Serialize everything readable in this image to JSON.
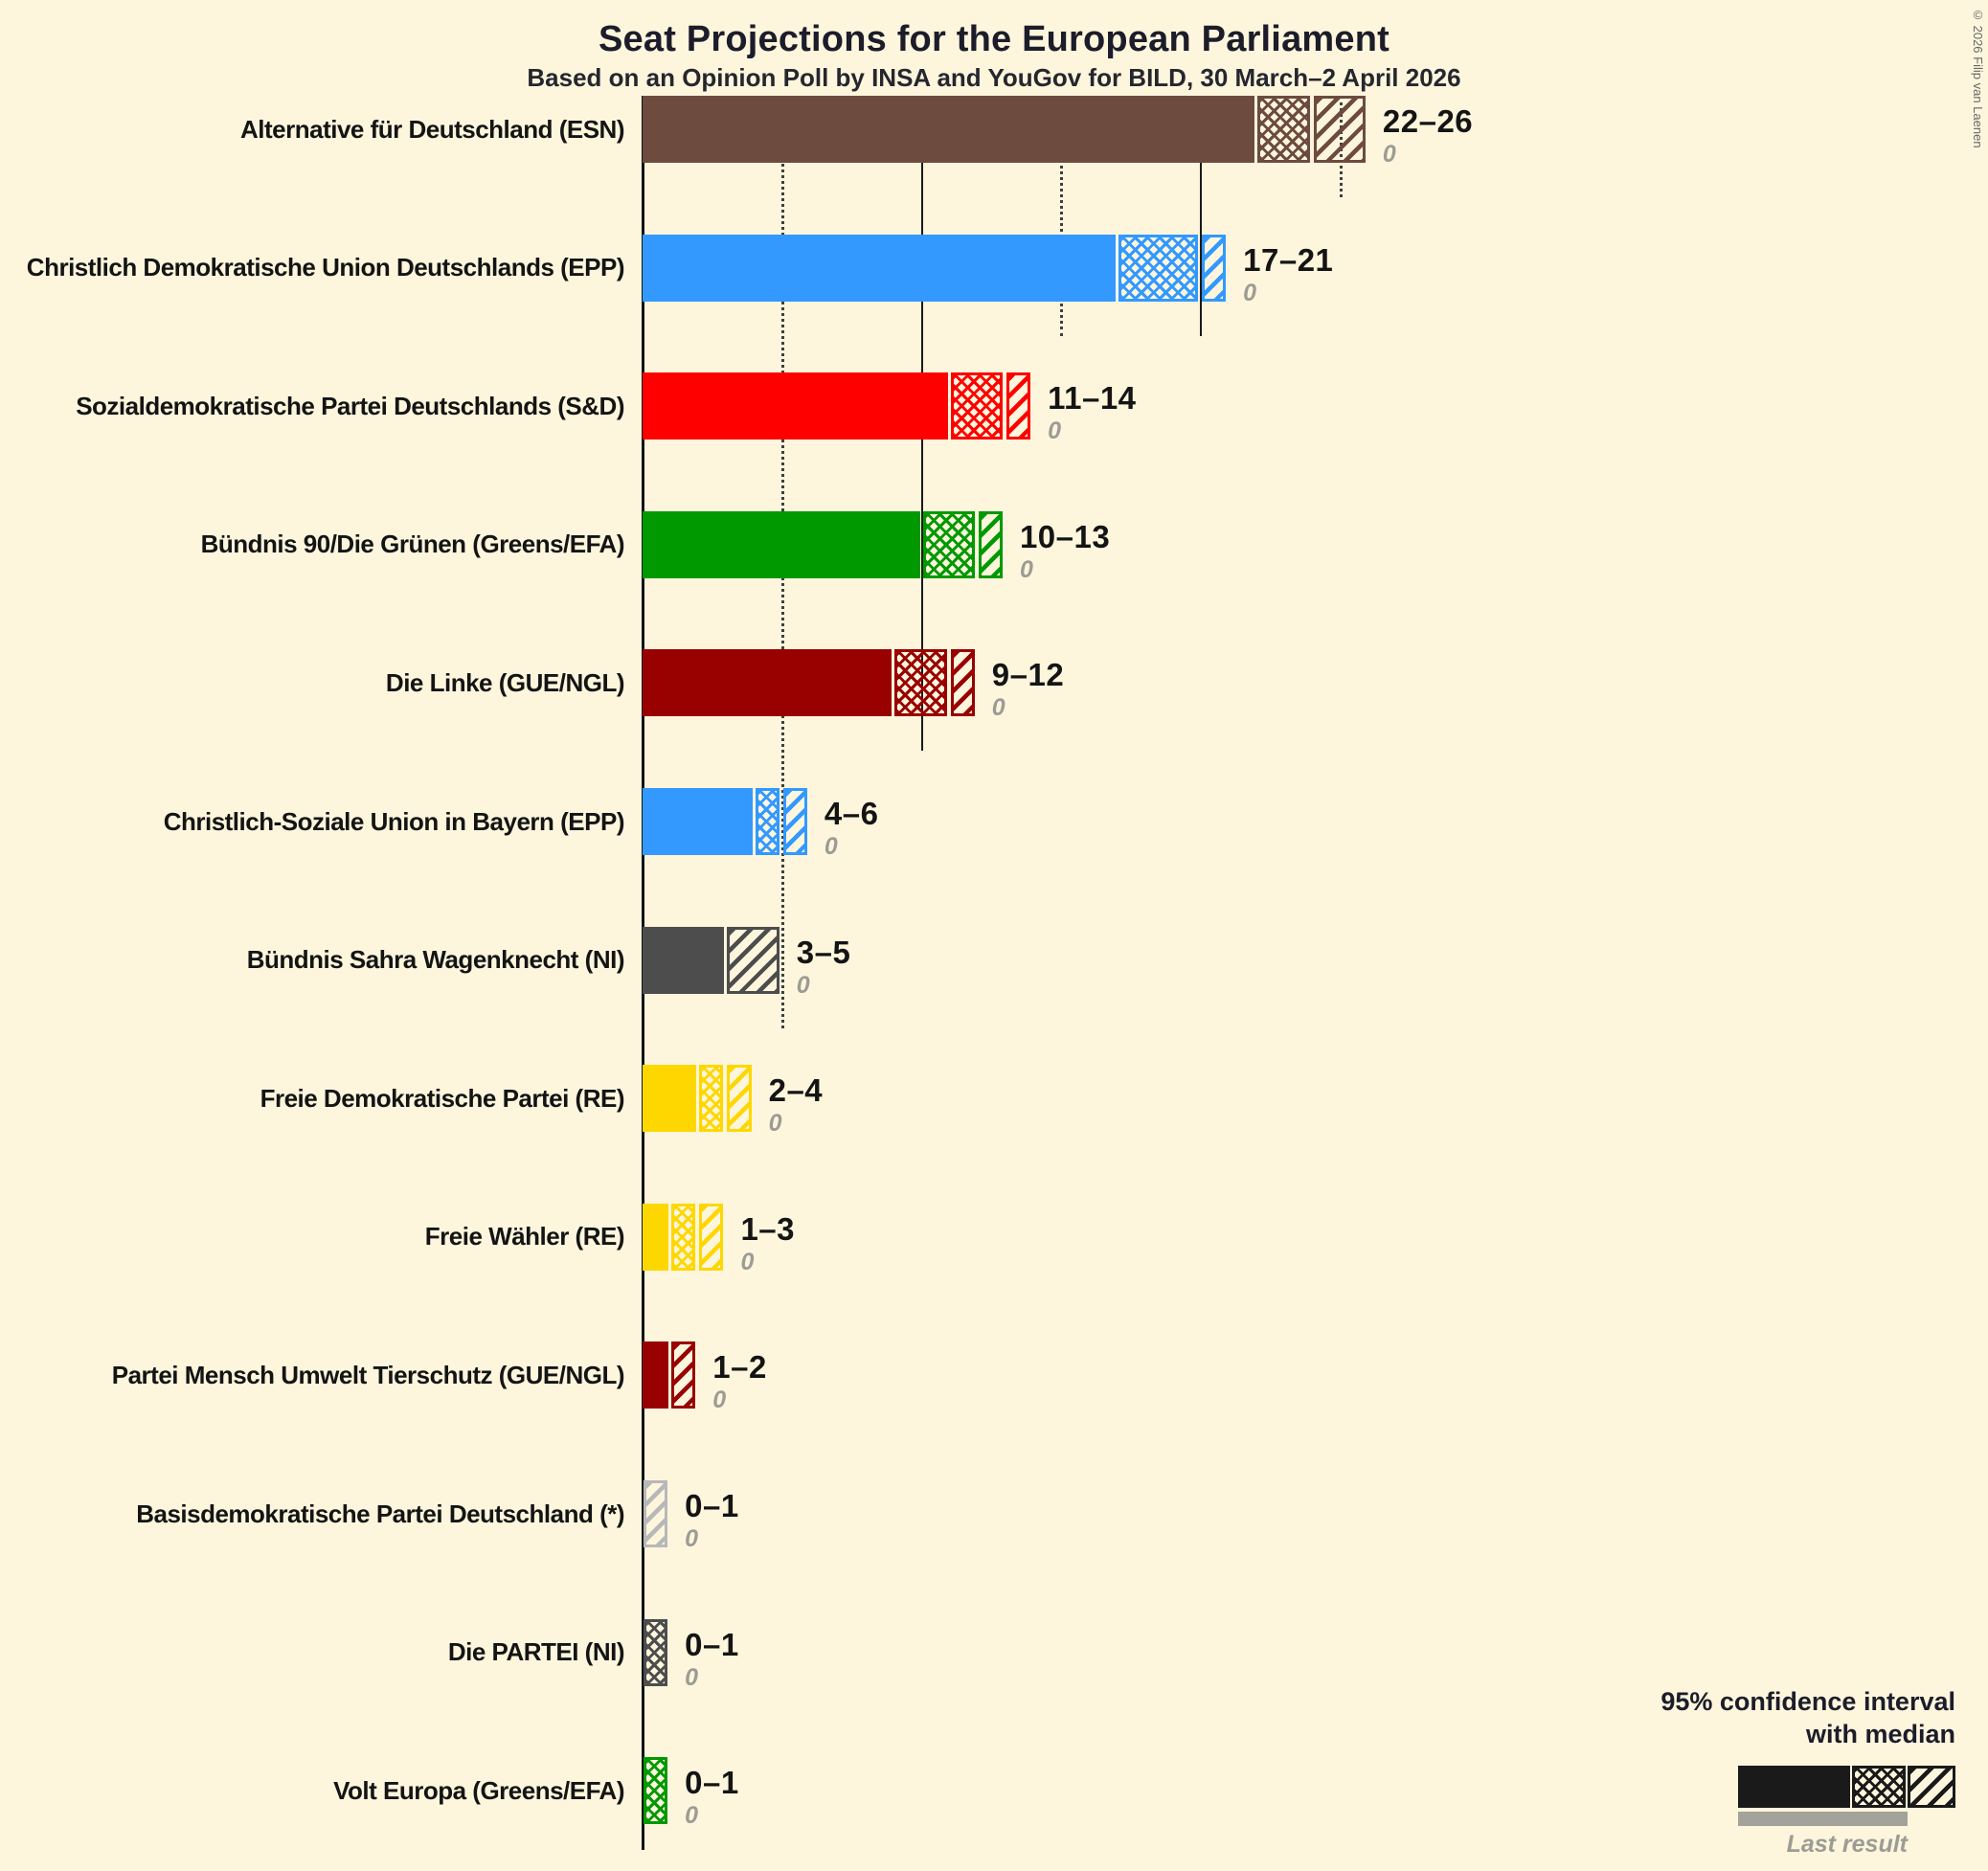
{
  "title": "Seat Projections for the European Parliament",
  "subtitle": "Based on an Opinion Poll by INSA and YouGov for BILD, 30 March–2 April 2026",
  "copyright": "© 2026 Filip van Laenen",
  "legend": {
    "line1": "95% confidence interval",
    "line2": "with median",
    "last_result": "Last result"
  },
  "colors": {
    "background": "#fdf6dd",
    "text": "#141414",
    "muted": "#9c9c94"
  },
  "chart_data": {
    "type": "bar",
    "orientation": "horizontal",
    "unit": "seats",
    "x_axis": {
      "ticks": [
        5,
        10,
        15,
        20,
        25
      ],
      "solid_ticks": [
        10,
        20
      ],
      "dotted_ticks": [
        5,
        15,
        25
      ],
      "min": 0,
      "max": 26
    },
    "parties": [
      {
        "label": "Alternative für Deutschland (ESN)",
        "low": 22,
        "median": 24,
        "high": 26,
        "range": "22–26",
        "last_result": 0,
        "color": "#6d4b3f"
      },
      {
        "label": "Christlich Demokratische Union Deutschlands (EPP)",
        "low": 17,
        "median": 20,
        "high": 21,
        "range": "17–21",
        "last_result": 0,
        "color": "#3399ff"
      },
      {
        "label": "Sozialdemokratische Partei Deutschlands (S&D)",
        "low": 11,
        "median": 13,
        "high": 14,
        "range": "11–14",
        "last_result": 0,
        "color": "#ff0000"
      },
      {
        "label": "Bündnis 90/Die Grünen (Greens/EFA)",
        "low": 10,
        "median": 12,
        "high": 13,
        "range": "10–13",
        "last_result": 0,
        "color": "#009900"
      },
      {
        "label": "Die Linke (GUE/NGL)",
        "low": 9,
        "median": 11,
        "high": 12,
        "range": "9–12",
        "last_result": 0,
        "color": "#990000"
      },
      {
        "label": "Christlich-Soziale Union in Bayern (EPP)",
        "low": 4,
        "median": 5,
        "high": 6,
        "range": "4–6",
        "last_result": 0,
        "color": "#3399ff"
      },
      {
        "label": "Bündnis Sahra Wagenknecht (NI)",
        "low": 3,
        "median": 3,
        "high": 5,
        "range": "3–5",
        "last_result": 0,
        "color": "#4d4d4d"
      },
      {
        "label": "Freie Demokratische Partei (RE)",
        "low": 2,
        "median": 3,
        "high": 4,
        "range": "2–4",
        "last_result": 0,
        "color": "#ffd700"
      },
      {
        "label": "Freie Wähler (RE)",
        "low": 1,
        "median": 2,
        "high": 3,
        "range": "1–3",
        "last_result": 0,
        "color": "#ffd700"
      },
      {
        "label": "Partei Mensch Umwelt Tierschutz (GUE/NGL)",
        "low": 1,
        "median": 1,
        "high": 2,
        "range": "1–2",
        "last_result": 0,
        "color": "#990000"
      },
      {
        "label": "Basisdemokratische Partei Deutschland (*)",
        "low": 0,
        "median": 0,
        "high": 1,
        "range": "0–1",
        "last_result": 0,
        "color": "#b8b8b8"
      },
      {
        "label": "Die PARTEI (NI)",
        "low": 0,
        "median": 1,
        "high": 1,
        "range": "0–1",
        "last_result": 0,
        "color": "#4d4d4d"
      },
      {
        "label": "Volt Europa (Greens/EFA)",
        "low": 0,
        "median": 1,
        "high": 1,
        "range": "0–1",
        "last_result": 0,
        "color": "#009900"
      }
    ]
  }
}
